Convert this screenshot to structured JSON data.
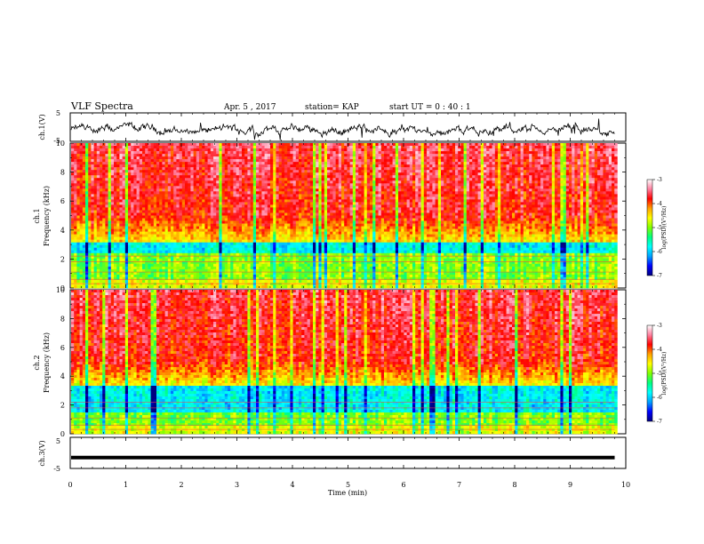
{
  "header": {
    "title": "VLF Spectra",
    "date": "Apr. 5 , 2017",
    "station": "station= KAP",
    "start_ut": "start UT = 0 : 40 : 1"
  },
  "chart_data": [
    {
      "type": "line",
      "panel": "ch1-waveform",
      "ylabel": "ch.1(V)",
      "ylim": [
        -5,
        5
      ],
      "yticks": [
        "5",
        "-5"
      ],
      "xlim": [
        0,
        10
      ],
      "note": "noisy waveform fluctuating around about -1 V",
      "color": "#000000"
    },
    {
      "type": "heatmap",
      "panel": "ch1-spectrogram",
      "ylabel": "ch.1\nFrequency (kHz)",
      "ylabel_line1": "ch.1",
      "ylabel_line2": "Frequency (kHz)",
      "ylim": [
        0,
        10
      ],
      "yticks": [
        "0",
        "2",
        "4",
        "6",
        "8",
        "10"
      ],
      "xlim": [
        0,
        10
      ],
      "colorbar": {
        "label": "log(PSD)(V²/Hz)",
        "range": [
          -7,
          -3
        ],
        "ticks": [
          "-3",
          "-4",
          "-5",
          "-6",
          "-7"
        ]
      }
    },
    {
      "type": "heatmap",
      "panel": "ch2-spectrogram",
      "ylabel_line1": "ch.2",
      "ylabel_line2": "Frequency (kHz)",
      "ylim": [
        0,
        10
      ],
      "yticks": [
        "0",
        "2",
        "4",
        "6",
        "8",
        "10"
      ],
      "xlim": [
        0,
        10
      ],
      "colorbar": {
        "label": "log(PSD)(V²/Hz)",
        "range": [
          -7,
          -3
        ],
        "ticks": [
          "-3",
          "-4",
          "-5",
          "-6",
          "-7"
        ]
      }
    },
    {
      "type": "line",
      "panel": "ch3-waveform",
      "ylabel": "ch.3(V)",
      "ylim": [
        -5,
        5
      ],
      "yticks": [
        "5",
        "-5"
      ],
      "xlim": [
        0,
        10
      ],
      "note": "flat line at about -1.5 V",
      "color": "#000000"
    }
  ],
  "xaxis": {
    "label": "Time (min)",
    "ticks": [
      "0",
      "1",
      "2",
      "3",
      "4",
      "5",
      "6",
      "7",
      "8",
      "9",
      "10"
    ],
    "data_end": 9.8
  },
  "colormap": [
    "#000080",
    "#0000ff",
    "#00a0ff",
    "#00ffff",
    "#00ff80",
    "#80ff00",
    "#ffff00",
    "#ffa000",
    "#ff0000",
    "#ff80a0",
    "#ffffff"
  ]
}
